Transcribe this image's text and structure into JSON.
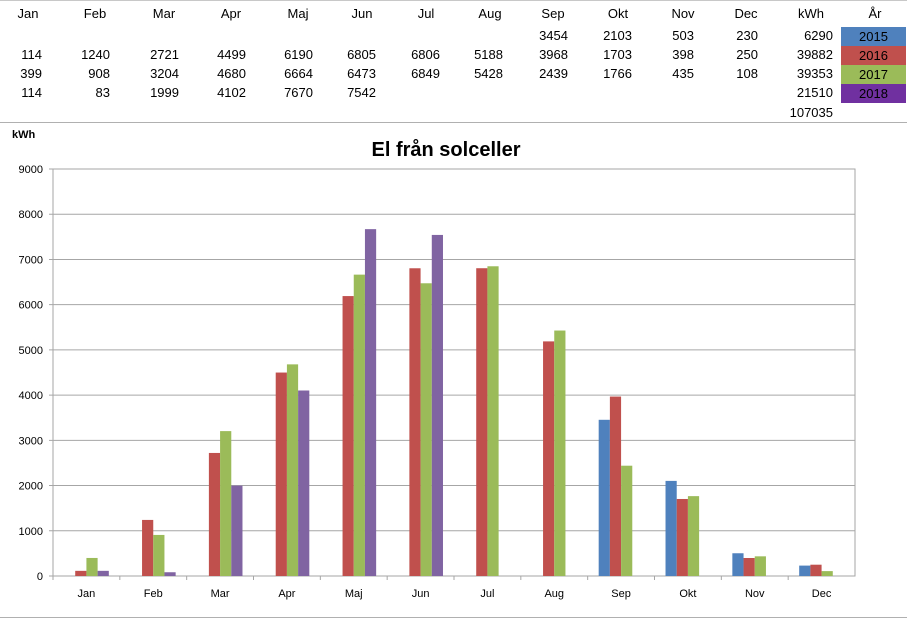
{
  "table": {
    "headers": [
      "Jan",
      "Feb",
      "Mar",
      "Apr",
      "Maj",
      "Jun",
      "Jul",
      "Aug",
      "Sep",
      "Okt",
      "Nov",
      "Dec",
      "kWh",
      "År"
    ],
    "rows": [
      {
        "values": [
          "",
          "",
          "",
          "",
          "",
          "",
          "",
          "",
          "3454",
          "2103",
          "503",
          "230"
        ],
        "total": "6290",
        "year": "2015",
        "color": "#4F81BD"
      },
      {
        "values": [
          "114",
          "1240",
          "2721",
          "4499",
          "6190",
          "6805",
          "6806",
          "5188",
          "3968",
          "1703",
          "398",
          "250"
        ],
        "total": "39882",
        "year": "2016",
        "color": "#C0504D"
      },
      {
        "values": [
          "399",
          "908",
          "3204",
          "4680",
          "6664",
          "6473",
          "6849",
          "5428",
          "2439",
          "1766",
          "435",
          "108"
        ],
        "total": "39353",
        "year": "2017",
        "color": "#9BBB59"
      },
      {
        "values": [
          "114",
          "83",
          "1999",
          "4102",
          "7670",
          "7542",
          "",
          "",
          "",
          "",
          "",
          ""
        ],
        "total": "21510",
        "year": "2018",
        "color": "#7030A0"
      }
    ],
    "grand_total": "107035"
  },
  "chart_data": {
    "type": "bar",
    "title": "El från solceller",
    "ylabel": "kWh",
    "xlabel": "",
    "categories": [
      "Jan",
      "Feb",
      "Mar",
      "Apr",
      "Maj",
      "Jun",
      "Jul",
      "Aug",
      "Sep",
      "Okt",
      "Nov",
      "Dec"
    ],
    "ylim": [
      0,
      9000
    ],
    "yticks": [
      0,
      1000,
      2000,
      3000,
      4000,
      5000,
      6000,
      7000,
      8000,
      9000
    ],
    "grid": true,
    "legend": "none",
    "series": [
      {
        "values": [
          null,
          null,
          null,
          null,
          null,
          null,
          null,
          null,
          3454,
          2103,
          503,
          230
        ],
        "color": "#4F81BD"
      },
      {
        "values": [
          114,
          1240,
          2721,
          4499,
          6190,
          6805,
          6806,
          5188,
          3968,
          1703,
          398,
          250
        ],
        "color": "#C0504D"
      },
      {
        "values": [
          399,
          908,
          3204,
          4680,
          6664,
          6473,
          6849,
          5428,
          2439,
          1766,
          435,
          108
        ],
        "color": "#9BBB59"
      },
      {
        "values": [
          114,
          83,
          1999,
          4102,
          7670,
          7542,
          null,
          null,
          null,
          null,
          null,
          null
        ],
        "color": "#8064A2"
      }
    ]
  }
}
